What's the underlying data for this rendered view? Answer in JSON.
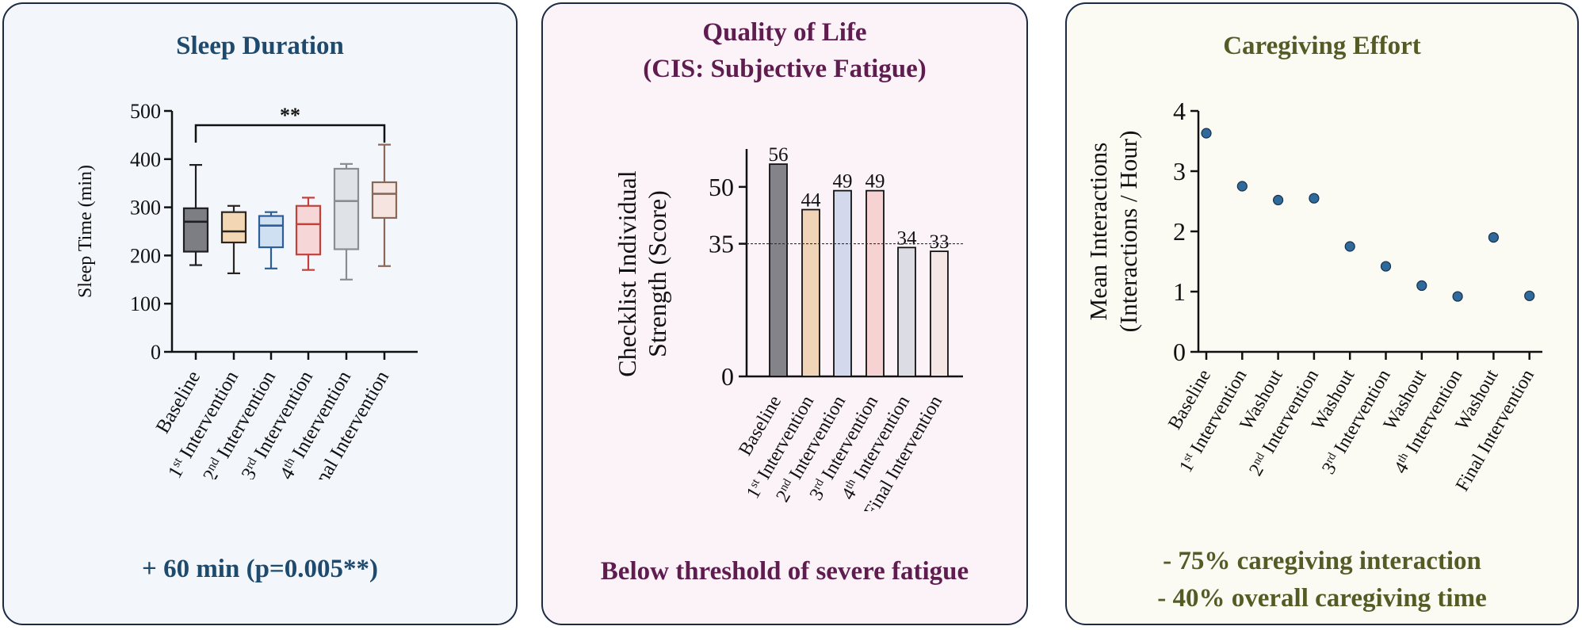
{
  "colors": {
    "blue": "#1e4a6e",
    "purple": "#5f1c4f",
    "olive": "#545c26",
    "dot": "#2f6a9a"
  },
  "chart_data": [
    {
      "type": "box",
      "title": "Sleep Duration",
      "ylabel": "Sleep Time (min)",
      "ylim": [
        0,
        500
      ],
      "yticks": [
        "0",
        "100",
        "200",
        "300",
        "400",
        "500"
      ],
      "categories": [
        {
          "base": "Baseline",
          "sup": ""
        },
        {
          "base": "1",
          "sup": "st",
          "rest": " Intervention"
        },
        {
          "base": "2",
          "sup": "nd",
          "rest": " Intervention"
        },
        {
          "base": "3",
          "sup": "rd",
          "rest": " Intervention"
        },
        {
          "base": "4",
          "sup": "th",
          "rest": " Intervention"
        },
        {
          "base": "Final Intervention",
          "sup": ""
        }
      ],
      "boxes": [
        {
          "min": 180,
          "q1": 208,
          "median": 270,
          "q3": 298,
          "max": 388,
          "fill": "#7d7e83",
          "stroke": "#1f1f22"
        },
        {
          "min": 163,
          "q1": 227,
          "median": 250,
          "q3": 290,
          "max": 303,
          "fill": "#f3d6b4",
          "stroke": "#2b2520"
        },
        {
          "min": 173,
          "q1": 217,
          "median": 262,
          "q3": 282,
          "max": 290,
          "fill": "#cfe0f2",
          "stroke": "#2d5e96"
        },
        {
          "min": 170,
          "q1": 202,
          "median": 265,
          "q3": 303,
          "max": 320,
          "fill": "#f6d6d6",
          "stroke": "#c3403b"
        },
        {
          "min": 150,
          "q1": 213,
          "median": 313,
          "q3": 380,
          "max": 390,
          "fill": "#dfe2e6",
          "stroke": "#8b8d90"
        },
        {
          "min": 178,
          "q1": 278,
          "median": 328,
          "q3": 352,
          "max": 430,
          "fill": "#f6e4e0",
          "stroke": "#8a6858"
        }
      ],
      "significance": {
        "from": 0,
        "to": 5,
        "label": "**"
      },
      "note": "+ 60 min (p=0.005**)"
    },
    {
      "type": "bar",
      "title": [
        "Quality of Life",
        "(CIS: Subjective Fatigue)"
      ],
      "ylabel": [
        "Checklist Individual",
        "Strength (Score)"
      ],
      "ylim": [
        0,
        60
      ],
      "yticks": [
        "0",
        "35",
        "50"
      ],
      "threshold": 35,
      "categories": [
        {
          "base": "Baseline",
          "sup": ""
        },
        {
          "base": "1",
          "sup": "st",
          "rest": " Intervention"
        },
        {
          "base": "2",
          "sup": "nd",
          "rest": " Intervention"
        },
        {
          "base": "3",
          "sup": "rd",
          "rest": " Intervention"
        },
        {
          "base": "4",
          "sup": "th",
          "rest": " Intervention"
        },
        {
          "base": "Final Intervention",
          "sup": ""
        }
      ],
      "values": [
        56,
        44,
        49,
        49,
        34,
        33
      ],
      "labels": [
        "56",
        "44",
        "49",
        "49",
        "34",
        "33"
      ],
      "fills": [
        "#838389",
        "#f0d4b8",
        "#d3d8ec",
        "#f6d2d2",
        "#dcdce4",
        "#f6e7e7"
      ],
      "note": "Below threshold of severe fatigue"
    },
    {
      "type": "scatter",
      "title": "Caregiving Effort",
      "ylabel": [
        "Mean Interactions",
        "(Interactions / Hour)"
      ],
      "ylim": [
        0,
        4
      ],
      "yticks": [
        "0",
        "1",
        "2",
        "3",
        "4"
      ],
      "categories": [
        {
          "base": "Baseline",
          "sup": ""
        },
        {
          "base": "1",
          "sup": "st",
          "rest": " Intervention"
        },
        {
          "base": "Washout",
          "sup": ""
        },
        {
          "base": "2",
          "sup": "nd",
          "rest": " Intervention"
        },
        {
          "base": "Washout",
          "sup": ""
        },
        {
          "base": "3",
          "sup": "rd",
          "rest": " Intervention"
        },
        {
          "base": "Washout",
          "sup": ""
        },
        {
          "base": "4",
          "sup": "th",
          "rest": " Intervention"
        },
        {
          "base": "Washout",
          "sup": ""
        },
        {
          "base": "Final Intervention",
          "sup": ""
        }
      ],
      "values": [
        3.63,
        2.75,
        2.52,
        2.55,
        1.75,
        1.42,
        1.1,
        0.92,
        1.9,
        0.93
      ],
      "notes": [
        "- 75% caregiving interaction",
        "- 40% overall caregiving time"
      ]
    }
  ]
}
